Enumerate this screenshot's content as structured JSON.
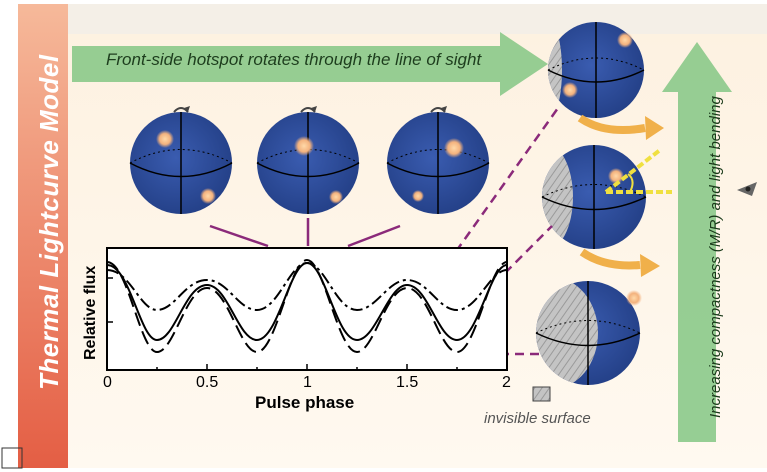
{
  "diagram": {
    "side_title": "Thermal Lightcurve Model",
    "top_banner": "Front-side hotspot rotates through the line of sight",
    "right_label": "Increasing compactness (M/R) and light bending",
    "legend_label": "invisible surface",
    "plot": {
      "ylabel": "Relative flux",
      "xlabel": "Pulse phase",
      "xticks": [
        "0",
        "0.5",
        "1",
        "1.5",
        "2"
      ]
    },
    "colors": {
      "side_bar": "#e8735a",
      "top_arrow": "#8bc98a",
      "right_arrow": "#8bc98a",
      "star": "#2f4e9e",
      "hotspot": "#f3b27e",
      "connector": "#8b2a7a",
      "curve_arrow": "#f0b04a",
      "invisible": "#b8b8b8"
    }
  }
}
